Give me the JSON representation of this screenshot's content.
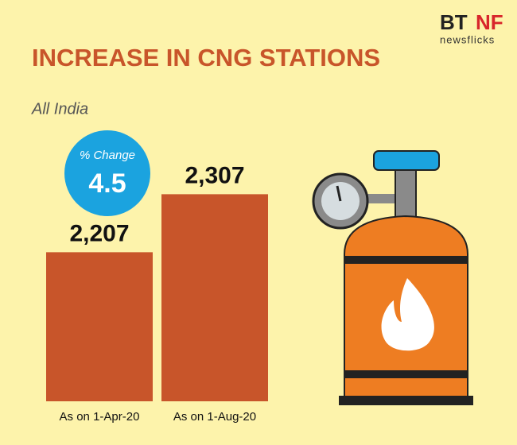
{
  "chart_data": {
    "type": "bar",
    "title": "INCREASE IN CNG STATIONS",
    "subtitle": "All India",
    "categories": [
      "As on 1-Apr-20",
      "As on 1-Aug-20"
    ],
    "values": [
      2207,
      2307
    ],
    "value_labels": [
      "2,207",
      "2,307"
    ],
    "color": "#c8552a",
    "ylim": [
      1950,
      2350
    ],
    "annotation": {
      "label": "% Change",
      "value": "4.5"
    },
    "logo": {
      "left": "BT",
      "right": "NF",
      "sub": "newsflicks"
    }
  }
}
